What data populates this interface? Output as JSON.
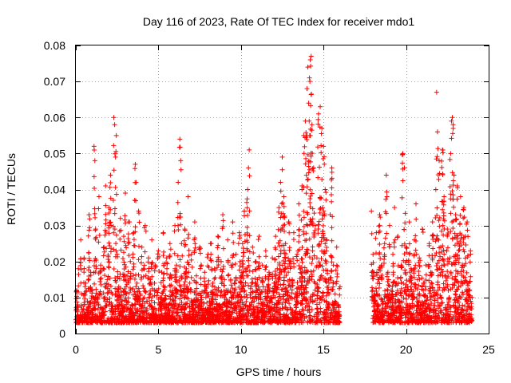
{
  "chart_data": {
    "type": "scatter",
    "title": "Day 116 of 2023, Rate Of TEC Index for receiver mdo1",
    "xlabel": "GPS time / hours",
    "ylabel": "ROTI / TECUs",
    "xlim": [
      0,
      25
    ],
    "ylim": [
      0,
      0.08
    ],
    "xticks": [
      0,
      5,
      10,
      15,
      20,
      25
    ],
    "xtick_labels": [
      "0",
      "5",
      "10",
      "15",
      "20",
      "25"
    ],
    "yticks": [
      0,
      0.01,
      0.02,
      0.03,
      0.04,
      0.05,
      0.06,
      0.07,
      0.08
    ],
    "ytick_labels": [
      "0",
      "0.01",
      "0.02",
      "0.03",
      "0.04",
      "0.05",
      "0.06",
      "0.07",
      "0.08"
    ],
    "grid": true,
    "marker": "plus",
    "color": "#ff0000",
    "data_gap": [
      16.0,
      17.9
    ],
    "points": [
      [
        0.05,
        0.012
      ],
      [
        0.1,
        0.008
      ],
      [
        0.15,
        0.018
      ],
      [
        0.2,
        0.004
      ],
      [
        0.3,
        0.026
      ],
      [
        0.35,
        0.011
      ],
      [
        0.4,
        0.006
      ],
      [
        0.5,
        0.021
      ],
      [
        0.6,
        0.014
      ],
      [
        0.7,
        0.009
      ],
      [
        0.8,
        0.033
      ],
      [
        0.9,
        0.017
      ],
      [
        1.0,
        0.012
      ],
      [
        1.1,
        0.052
      ],
      [
        1.15,
        0.048
      ],
      [
        1.2,
        0.029
      ],
      [
        1.3,
        0.01
      ],
      [
        1.4,
        0.038
      ],
      [
        1.5,
        0.019
      ],
      [
        1.6,
        0.007
      ],
      [
        1.7,
        0.024
      ],
      [
        1.8,
        0.041
      ],
      [
        1.9,
        0.015
      ],
      [
        2.0,
        0.035
      ],
      [
        2.1,
        0.044
      ],
      [
        2.2,
        0.011
      ],
      [
        2.3,
        0.06
      ],
      [
        2.35,
        0.058
      ],
      [
        2.4,
        0.049
      ],
      [
        2.45,
        0.055
      ],
      [
        2.5,
        0.022
      ],
      [
        2.6,
        0.013
      ],
      [
        2.7,
        0.032
      ],
      [
        2.8,
        0.009
      ],
      [
        2.9,
        0.027
      ],
      [
        3.0,
        0.039
      ],
      [
        3.1,
        0.016
      ],
      [
        3.2,
        0.031
      ],
      [
        3.3,
        0.02
      ],
      [
        3.4,
        0.008
      ],
      [
        3.5,
        0.028
      ],
      [
        3.6,
        0.047
      ],
      [
        3.7,
        0.014
      ],
      [
        3.8,
        0.034
      ],
      [
        3.9,
        0.011
      ],
      [
        4.0,
        0.024
      ],
      [
        4.1,
        0.018
      ],
      [
        4.2,
        0.03
      ],
      [
        4.3,
        0.009
      ],
      [
        4.4,
        0.021
      ],
      [
        4.5,
        0.015
      ],
      [
        4.6,
        0.026
      ],
      [
        4.7,
        0.007
      ],
      [
        4.8,
        0.019
      ],
      [
        4.9,
        0.012
      ],
      [
        5.0,
        0.023
      ],
      [
        5.1,
        0.01
      ],
      [
        5.2,
        0.017
      ],
      [
        5.3,
        0.028
      ],
      [
        5.4,
        0.013
      ],
      [
        5.5,
        0.021
      ],
      [
        5.6,
        0.008
      ],
      [
        5.7,
        0.025
      ],
      [
        5.8,
        0.016
      ],
      [
        5.9,
        0.011
      ],
      [
        6.0,
        0.03
      ],
      [
        6.1,
        0.019
      ],
      [
        6.2,
        0.042
      ],
      [
        6.3,
        0.054
      ],
      [
        6.35,
        0.048
      ],
      [
        6.4,
        0.025
      ],
      [
        6.5,
        0.012
      ],
      [
        6.6,
        0.029
      ],
      [
        6.7,
        0.018
      ],
      [
        6.8,
        0.038
      ],
      [
        6.9,
        0.014
      ],
      [
        7.0,
        0.022
      ],
      [
        7.1,
        0.009
      ],
      [
        7.2,
        0.031
      ],
      [
        7.3,
        0.016
      ],
      [
        7.4,
        0.011
      ],
      [
        7.5,
        0.024
      ],
      [
        7.6,
        0.019
      ],
      [
        7.7,
        0.007
      ],
      [
        7.8,
        0.017
      ],
      [
        7.9,
        0.013
      ],
      [
        8.0,
        0.022
      ],
      [
        8.1,
        0.009
      ],
      [
        8.2,
        0.025
      ],
      [
        8.3,
        0.014
      ],
      [
        8.4,
        0.018
      ],
      [
        8.5,
        0.011
      ],
      [
        8.6,
        0.027
      ],
      [
        8.7,
        0.008
      ],
      [
        8.8,
        0.02
      ],
      [
        8.9,
        0.033
      ],
      [
        9.0,
        0.015
      ],
      [
        9.1,
        0.012
      ],
      [
        9.2,
        0.026
      ],
      [
        9.3,
        0.009
      ],
      [
        9.4,
        0.019
      ],
      [
        9.5,
        0.031
      ],
      [
        9.6,
        0.014
      ],
      [
        9.7,
        0.022
      ],
      [
        9.8,
        0.011
      ],
      [
        9.9,
        0.028
      ],
      [
        10.0,
        0.016
      ],
      [
        10.1,
        0.025
      ],
      [
        10.2,
        0.034
      ],
      [
        10.3,
        0.018
      ],
      [
        10.4,
        0.04
      ],
      [
        10.5,
        0.051
      ],
      [
        10.6,
        0.013
      ],
      [
        10.7,
        0.024
      ],
      [
        10.8,
        0.009
      ],
      [
        10.9,
        0.02
      ],
      [
        11.0,
        0.015
      ],
      [
        11.1,
        0.027
      ],
      [
        11.2,
        0.011
      ],
      [
        11.3,
        0.019
      ],
      [
        11.4,
        0.008
      ],
      [
        11.5,
        0.023
      ],
      [
        11.6,
        0.013
      ],
      [
        11.7,
        0.017
      ],
      [
        11.8,
        0.01
      ],
      [
        11.9,
        0.021
      ],
      [
        12.0,
        0.014
      ],
      [
        12.1,
        0.027
      ],
      [
        12.2,
        0.018
      ],
      [
        12.3,
        0.035
      ],
      [
        12.4,
        0.042
      ],
      [
        12.5,
        0.049
      ],
      [
        12.6,
        0.038
      ],
      [
        12.7,
        0.025
      ],
      [
        12.8,
        0.012
      ],
      [
        12.9,
        0.031
      ],
      [
        13.0,
        0.02
      ],
      [
        13.1,
        0.015
      ],
      [
        13.2,
        0.028
      ],
      [
        13.3,
        0.011
      ],
      [
        13.4,
        0.022
      ],
      [
        13.5,
        0.036
      ],
      [
        13.6,
        0.018
      ],
      [
        13.7,
        0.041
      ],
      [
        13.8,
        0.055
      ],
      [
        13.9,
        0.059
      ],
      [
        14.0,
        0.068
      ],
      [
        14.05,
        0.074
      ],
      [
        14.1,
        0.064
      ],
      [
        14.15,
        0.071
      ],
      [
        14.2,
        0.076
      ],
      [
        14.25,
        0.077
      ],
      [
        14.3,
        0.058
      ],
      [
        14.4,
        0.046
      ],
      [
        14.5,
        0.03
      ],
      [
        14.6,
        0.021
      ],
      [
        14.7,
        0.061
      ],
      [
        14.8,
        0.063
      ],
      [
        14.9,
        0.057
      ],
      [
        15.0,
        0.052
      ],
      [
        15.1,
        0.04
      ],
      [
        15.2,
        0.026
      ],
      [
        15.3,
        0.015
      ],
      [
        15.4,
        0.033
      ],
      [
        15.5,
        0.046
      ],
      [
        15.6,
        0.019
      ],
      [
        15.7,
        0.011
      ],
      [
        15.8,
        0.024
      ],
      [
        15.9,
        0.008
      ],
      [
        16.0,
        0.013
      ],
      [
        17.9,
        0.034
      ],
      [
        18.0,
        0.022
      ],
      [
        18.1,
        0.011
      ],
      [
        18.2,
        0.028
      ],
      [
        18.3,
        0.015
      ],
      [
        18.4,
        0.033
      ],
      [
        18.5,
        0.019
      ],
      [
        18.6,
        0.009
      ],
      [
        18.7,
        0.025
      ],
      [
        18.8,
        0.044
      ],
      [
        18.9,
        0.017
      ],
      [
        19.0,
        0.03
      ],
      [
        19.1,
        0.012
      ],
      [
        19.2,
        0.022
      ],
      [
        19.3,
        0.035
      ],
      [
        19.4,
        0.014
      ],
      [
        19.5,
        0.027
      ],
      [
        19.6,
        0.009
      ],
      [
        19.7,
        0.019
      ],
      [
        19.8,
        0.05
      ],
      [
        19.9,
        0.046
      ],
      [
        20.0,
        0.024
      ],
      [
        20.1,
        0.013
      ],
      [
        20.2,
        0.031
      ],
      [
        20.3,
        0.018
      ],
      [
        20.4,
        0.011
      ],
      [
        20.5,
        0.026
      ],
      [
        20.6,
        0.036
      ],
      [
        20.7,
        0.015
      ],
      [
        20.8,
        0.021
      ],
      [
        20.9,
        0.008
      ],
      [
        21.0,
        0.029
      ],
      [
        21.1,
        0.014
      ],
      [
        21.2,
        0.019
      ],
      [
        21.3,
        0.01
      ],
      [
        21.4,
        0.025
      ],
      [
        21.5,
        0.017
      ],
      [
        21.6,
        0.031
      ],
      [
        21.7,
        0.012
      ],
      [
        21.8,
        0.04
      ],
      [
        21.85,
        0.067
      ],
      [
        21.9,
        0.056
      ],
      [
        22.0,
        0.048
      ],
      [
        22.1,
        0.024
      ],
      [
        22.2,
        0.051
      ],
      [
        22.3,
        0.038
      ],
      [
        22.4,
        0.016
      ],
      [
        22.5,
        0.029
      ],
      [
        22.6,
        0.02
      ],
      [
        22.7,
        0.05
      ],
      [
        22.8,
        0.06
      ],
      [
        22.85,
        0.058
      ],
      [
        22.9,
        0.044
      ],
      [
        23.0,
        0.033
      ],
      [
        23.1,
        0.041
      ],
      [
        23.2,
        0.025
      ],
      [
        23.3,
        0.038
      ],
      [
        23.4,
        0.019
      ],
      [
        23.5,
        0.035
      ],
      [
        23.6,
        0.027
      ],
      [
        23.7,
        0.031
      ],
      [
        23.8,
        0.014
      ],
      [
        23.9,
        0.023
      ],
      [
        24.0,
        0.01
      ]
    ]
  }
}
